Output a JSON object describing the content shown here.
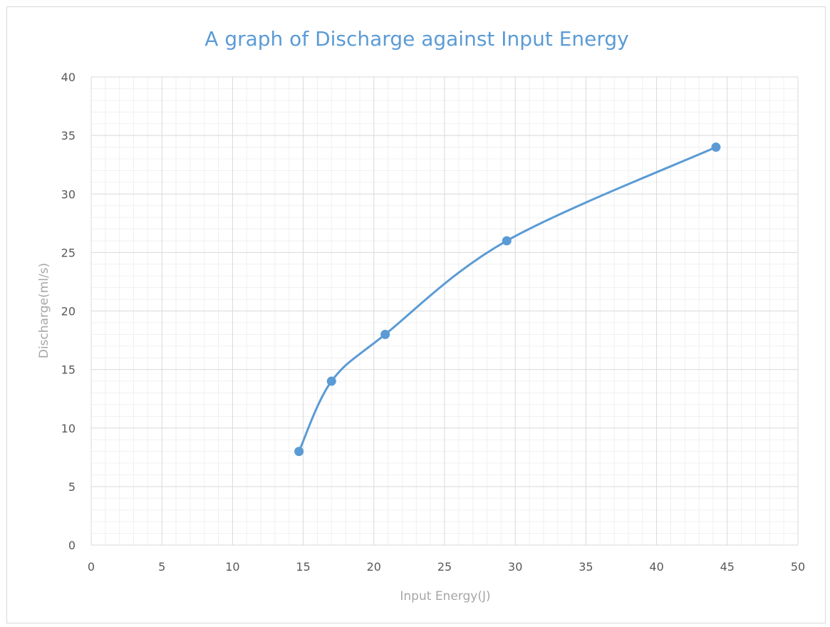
{
  "chart_data": {
    "type": "scatter",
    "title": "A graph of Discharge against Input Energy",
    "xlabel": "Input Energy(J)",
    "ylabel": "Discharge(ml/s)",
    "xlim": [
      0,
      50
    ],
    "ylim": [
      0,
      40
    ],
    "x_ticks": [
      "0",
      "5",
      "10",
      "15",
      "20",
      "25",
      "30",
      "35",
      "40",
      "45",
      "50"
    ],
    "y_ticks": [
      "0",
      "5",
      "10",
      "15",
      "20",
      "25",
      "30",
      "35",
      "40"
    ],
    "grid": true,
    "minor_grid": true,
    "smooth_line": true,
    "series": [
      {
        "color": "#5b9bd5",
        "points": [
          {
            "x": 14.7,
            "y": 8
          },
          {
            "x": 17.0,
            "y": 14
          },
          {
            "x": 20.8,
            "y": 18
          },
          {
            "x": 29.4,
            "y": 26
          },
          {
            "x": 44.2,
            "y": 34
          }
        ]
      }
    ],
    "colors": {
      "major_grid": "#d9d9d9",
      "minor_grid": "#f0f0f0",
      "axis_text": "#595959",
      "axis_title": "#a6a6a6",
      "title": "#5b9bd5"
    }
  }
}
